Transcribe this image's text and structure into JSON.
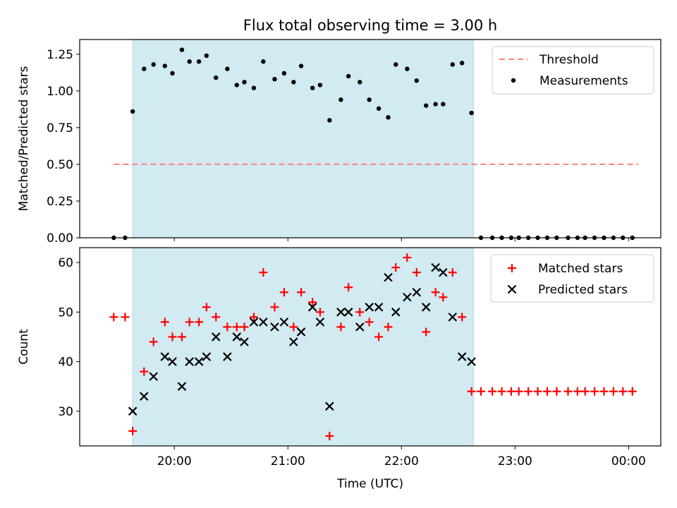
{
  "figure_title": "Flux total observing time = 3.00 h",
  "colors": {
    "threshold": "#ff7f7f",
    "measurement": "#000000",
    "matched": "#ff0000",
    "predicted": "#000000",
    "shade_fill": "#add8e6",
    "axis": "#000000"
  },
  "chart_data": [
    {
      "type": "scatter",
      "ylabel": "Matched/Predicted stars",
      "ylim": [
        0,
        1.35
      ],
      "xlim": [
        "19:10",
        "00:17"
      ],
      "y_ticks": [
        "0.00",
        "0.25",
        "0.50",
        "0.75",
        "1.00",
        "1.25"
      ],
      "legend_position": "top-right",
      "legend": [
        {
          "label": "Threshold",
          "marker": "dashed-line"
        },
        {
          "label": "Measurements",
          "marker": "dot"
        }
      ],
      "shaded_interval": [
        "19:38",
        "22:38"
      ],
      "threshold": {
        "value": 0.5,
        "x_range": [
          "19:28",
          "00:05"
        ]
      },
      "measurements": {
        "x": [
          "19:28",
          "19:34",
          "19:38",
          "19:44",
          "19:49",
          "19:55",
          "19:59",
          "20:04",
          "20:08",
          "20:13",
          "20:17",
          "20:22",
          "20:28",
          "20:33",
          "20:37",
          "20:42",
          "20:47",
          "20:53",
          "20:58",
          "21:03",
          "21:07",
          "21:13",
          "21:17",
          "21:22",
          "21:28",
          "21:32",
          "21:38",
          "21:43",
          "21:48",
          "21:53",
          "21:57",
          "22:03",
          "22:08",
          "22:13",
          "22:18",
          "22:22",
          "22:27",
          "22:32",
          "22:37",
          "22:42",
          "22:48",
          "22:53",
          "22:58",
          "23:02",
          "23:07",
          "23:12",
          "23:17",
          "23:22",
          "23:28",
          "23:33",
          "23:37",
          "23:42",
          "23:47",
          "23:52",
          "23:57",
          "00:02"
        ],
        "y": [
          0.0,
          0.0,
          0.86,
          1.15,
          1.18,
          1.17,
          1.12,
          1.28,
          1.2,
          1.2,
          1.24,
          1.09,
          1.15,
          1.04,
          1.06,
          1.02,
          1.2,
          1.08,
          1.12,
          1.06,
          1.17,
          1.02,
          1.04,
          0.8,
          0.94,
          1.1,
          1.06,
          0.94,
          0.88,
          0.82,
          1.18,
          1.15,
          1.07,
          0.9,
          0.91,
          0.91,
          1.18,
          1.19,
          0.85,
          0.0,
          0.0,
          0.0,
          0.0,
          0.0,
          0.0,
          0.0,
          0.0,
          0.0,
          0.0,
          0.0,
          0.0,
          0.0,
          0.0,
          0.0,
          0.0,
          0.0
        ]
      }
    },
    {
      "type": "scatter",
      "ylabel": "Count",
      "xlabel": "Time (UTC)",
      "ylim": [
        23,
        63
      ],
      "xlim": [
        "19:10",
        "00:17"
      ],
      "y_ticks": [
        "30",
        "40",
        "50",
        "60"
      ],
      "x_ticks": [
        "20:00",
        "21:00",
        "22:00",
        "23:00",
        "00:00"
      ],
      "legend_position": "top-right",
      "legend": [
        {
          "label": "Matched stars",
          "marker": "plus"
        },
        {
          "label": "Predicted stars",
          "marker": "x"
        }
      ],
      "shaded_interval": [
        "19:38",
        "22:38"
      ],
      "matched": {
        "x": [
          "19:28",
          "19:34",
          "19:38",
          "19:44",
          "19:49",
          "19:55",
          "19:59",
          "20:04",
          "20:08",
          "20:13",
          "20:17",
          "20:22",
          "20:28",
          "20:33",
          "20:37",
          "20:42",
          "20:47",
          "20:53",
          "20:58",
          "21:03",
          "21:07",
          "21:13",
          "21:17",
          "21:22",
          "21:28",
          "21:32",
          "21:38",
          "21:43",
          "21:48",
          "21:53",
          "21:57",
          "22:03",
          "22:08",
          "22:13",
          "22:18",
          "22:22",
          "22:27",
          "22:32",
          "22:37",
          "22:42",
          "22:48",
          "22:53",
          "22:58",
          "23:02",
          "23:07",
          "23:12",
          "23:17",
          "23:22",
          "23:28",
          "23:33",
          "23:37",
          "23:42",
          "23:47",
          "23:52",
          "23:57",
          "00:02"
        ],
        "y": [
          49,
          49,
          26,
          38,
          44,
          48,
          45,
          45,
          48,
          48,
          51,
          49,
          47,
          47,
          47,
          49,
          58,
          51,
          54,
          47,
          54,
          52,
          50,
          25,
          47,
          55,
          50,
          48,
          45,
          47,
          59,
          61,
          58,
          46,
          54,
          53,
          58,
          49,
          34,
          34,
          34,
          34,
          34,
          34,
          34,
          34,
          34,
          34,
          34,
          34,
          34,
          34,
          34,
          34,
          34,
          34
        ]
      },
      "predicted": {
        "x": [
          "19:38",
          "19:44",
          "19:49",
          "19:55",
          "19:59",
          "20:04",
          "20:08",
          "20:13",
          "20:17",
          "20:22",
          "20:28",
          "20:33",
          "20:37",
          "20:42",
          "20:47",
          "20:53",
          "20:58",
          "21:03",
          "21:07",
          "21:13",
          "21:17",
          "21:22",
          "21:28",
          "21:32",
          "21:38",
          "21:43",
          "21:48",
          "21:53",
          "21:57",
          "22:03",
          "22:08",
          "22:13",
          "22:18",
          "22:22",
          "22:27",
          "22:32",
          "22:37"
        ],
        "y": [
          30,
          33,
          37,
          41,
          40,
          35,
          40,
          40,
          41,
          45,
          41,
          45,
          44,
          48,
          48,
          47,
          48,
          44,
          46,
          51,
          48,
          31,
          50,
          50,
          47,
          51,
          51,
          57,
          50,
          53,
          54,
          51,
          59,
          58,
          49,
          41,
          40
        ]
      }
    }
  ]
}
